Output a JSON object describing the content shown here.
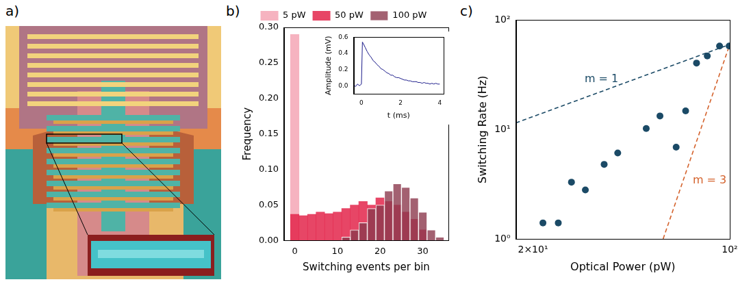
{
  "image": {
    "label": "a)",
    "type": "micrograph"
  },
  "chart_data": [
    {
      "label": "b)",
      "type": "histogram",
      "x_label": "Switching events per bin",
      "y_label": "Frequency",
      "bins": [
        -1,
        1,
        3,
        5,
        7,
        9,
        11,
        13,
        15,
        17,
        19,
        21,
        23,
        25,
        27,
        29,
        31,
        33,
        35
      ],
      "series": [
        {
          "name": "5 pW",
          "color": "#f6b3c0",
          "values": [
            0.29,
            0,
            0,
            0,
            0,
            0,
            0,
            0,
            0,
            0,
            0,
            0,
            0,
            0,
            0,
            0,
            0,
            0
          ]
        },
        {
          "name": "50 pW",
          "color": "#e3264b",
          "values": [
            0.037,
            0.035,
            0.037,
            0.04,
            0.038,
            0.04,
            0.045,
            0.05,
            0.055,
            0.05,
            0.06,
            0.055,
            0.05,
            0.04,
            0.03,
            0.015,
            0,
            0
          ]
        },
        {
          "name": "100 pW",
          "color": "#8c3a4e",
          "values": [
            0,
            0,
            0,
            0,
            0,
            0,
            0.005,
            0.015,
            0.025,
            0.045,
            0.05,
            0.07,
            0.08,
            0.075,
            0.06,
            0.04,
            0.015,
            0.005
          ]
        }
      ],
      "xlim": [
        -2.5,
        36
      ],
      "xticks": [
        0,
        10,
        20,
        30
      ],
      "ylim": [
        0,
        0.3
      ],
      "yticks": [
        {
          "value": 0,
          "label": "0.00"
        },
        {
          "value": 0.05,
          "label": "0.05"
        },
        {
          "value": 0.1,
          "label": "0.10"
        },
        {
          "value": 0.15,
          "label": "0.15"
        },
        {
          "value": 0.2,
          "label": "0.20"
        },
        {
          "value": 0.25,
          "label": "0.25"
        },
        {
          "value": 0.3,
          "label": "0.30"
        }
      ],
      "legend": "top",
      "grid": false
    },
    {
      "type": "line",
      "x_label": "t (ms)",
      "y_label": "Amplitude (mV)",
      "color": "#1c1c8a",
      "x": [
        -0.4,
        -0.3,
        -0.2,
        -0.1,
        0,
        0.05,
        0.1,
        0.2,
        0.3,
        0.4,
        0.5,
        0.6,
        0.7,
        0.8,
        0.9,
        1.0,
        1.1,
        1.2,
        1.3,
        1.4,
        1.5,
        1.6,
        1.7,
        1.8,
        1.9,
        2.0,
        2.1,
        2.2,
        2.3,
        2.4,
        2.5,
        2.6,
        2.7,
        2.8,
        2.9,
        3.0,
        3.1,
        3.2,
        3.3,
        3.4,
        3.5,
        3.6,
        3.7,
        3.8,
        3.9,
        4.0
      ],
      "values": [
        0.01,
        -0.01,
        0.02,
        0.0,
        0.02,
        0.54,
        0.52,
        0.47,
        0.42,
        0.38,
        0.35,
        0.31,
        0.29,
        0.26,
        0.24,
        0.21,
        0.2,
        0.18,
        0.16,
        0.15,
        0.13,
        0.13,
        0.11,
        0.1,
        0.1,
        0.09,
        0.08,
        0.07,
        0.07,
        0.06,
        0.06,
        0.05,
        0.05,
        0.05,
        0.04,
        0.04,
        0.03,
        0.04,
        0.03,
        0.03,
        0.02,
        0.03,
        0.02,
        0.03,
        0.02,
        0.02
      ],
      "xlim": [
        -0.4,
        4.2
      ],
      "xticks": [
        0,
        2,
        4
      ],
      "ylim": [
        -0.1,
        0.6
      ],
      "yticks": [
        {
          "value": 0,
          "label": "0.0"
        },
        {
          "value": 0.2,
          "label": "0.2"
        },
        {
          "value": 0.4,
          "label": "0.4"
        },
        {
          "value": 0.6,
          "label": "0.6"
        }
      ],
      "grid": false
    },
    {
      "label": "c)",
      "type": "scatter",
      "log": true,
      "x_label": "Optical Power (pW)",
      "y_label": "Switching Rate (Hz)",
      "series": [
        {
          "type": "scatter",
          "color": "#1b4a66",
          "marker": "circle",
          "x": [
            21.7,
            24.6,
            27.4,
            30.7,
            35.8,
            40.0,
            50.5,
            56.5,
            64.5,
            69.7,
            76.2,
            83.2,
            92.0,
            99.5
          ],
          "values": [
            1.4,
            1.4,
            3.3,
            2.8,
            4.8,
            6.1,
            10.2,
            13.3,
            6.9,
            14.8,
            40.5,
            47,
            58,
            58
          ]
        },
        {
          "name": "m = 1",
          "type": "line",
          "color": "#1b4a66",
          "line_style": "dashed",
          "x": [
            17.4,
            100
          ],
          "values": [
            11.5,
            60
          ]
        },
        {
          "name": "m = 3",
          "type": "line",
          "color": "#d4622c",
          "line_style": "dashed",
          "x": [
            58,
            100
          ],
          "values": [
            1,
            60
          ]
        }
      ],
      "xlim": [
        17.4,
        100
      ],
      "xticks": [
        {
          "value": 20,
          "label": "2×10¹"
        },
        {
          "value": 100,
          "label": "10²"
        }
      ],
      "ylim": [
        1,
        100
      ],
      "yticks": [
        {
          "value": 1,
          "label": "10⁰"
        },
        {
          "value": 10,
          "label": "10¹"
        },
        {
          "value": 100,
          "label": "10²"
        }
      ],
      "grid": false
    }
  ]
}
